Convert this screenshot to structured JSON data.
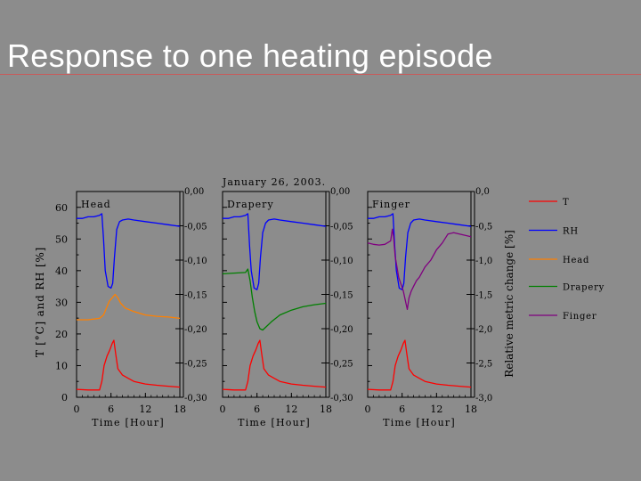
{
  "slide": {
    "title": "Response to one heating episode"
  },
  "colors": {
    "T": "#ff0000",
    "RH": "#0000ff",
    "Head": "#ff8000",
    "Drapery": "#008000",
    "Finger": "#800080",
    "background": "#8c8c8c"
  },
  "chart_data": {
    "type": "line",
    "title": "January 26, 2003.",
    "legend": {
      "position": "right",
      "entries": [
        "T",
        "RH",
        "Head",
        "Drapery",
        "Finger"
      ]
    },
    "left_axis": {
      "label": "T [°C] and RH [%]",
      "ticks": [
        "0",
        "10",
        "20",
        "30",
        "40",
        "50",
        "60"
      ],
      "ylim": [
        0,
        65
      ]
    },
    "right_axis": {
      "label": "Relative metric change [%]",
      "ticks_panel12": [
        "0,00",
        "-0,05",
        "-0,10",
        "-0,15",
        "-0,20",
        "-0,25",
        "-0,30"
      ],
      "ylim_panel12": [
        -0.3,
        0.0
      ],
      "ticks_panel3": [
        "0,0",
        "-0,5",
        "-1,0",
        "-1,5",
        "-2,0",
        "-2,5",
        "-3,0"
      ],
      "ylim_panel3": [
        -3.0,
        0.0
      ]
    },
    "x_axis": {
      "label": "Time [Hour]",
      "ticks": [
        "0",
        "6",
        "12",
        "18"
      ],
      "xlim": [
        0,
        18
      ]
    },
    "panels": [
      {
        "label": "Head",
        "series": [
          {
            "name": "RH",
            "axis": "left",
            "x": [
              0,
              1,
              2,
              3,
              4,
              4.4,
              4.7,
              5.0,
              5.5,
              6.0,
              6.3,
              6.6,
              7.0,
              7.5,
              8,
              9,
              10,
              12,
              14,
              16,
              18
            ],
            "y": [
              56.5,
              56.5,
              57,
              57,
              57.5,
              58,
              50,
              40,
              35,
              34.5,
              36,
              44,
              53,
              55.5,
              56,
              56.3,
              56,
              55.5,
              55,
              54.5,
              54
            ]
          },
          {
            "name": "Head",
            "axis": "right",
            "x": [
              0,
              2,
              4,
              4.7,
              5.2,
              5.7,
              6.2,
              6.7,
              7.2,
              7.7,
              8.5,
              10,
              12,
              14,
              16,
              18
            ],
            "y": [
              -0.187,
              -0.187,
              -0.185,
              -0.18,
              -0.17,
              -0.16,
              -0.155,
              -0.15,
              -0.155,
              -0.163,
              -0.17,
              -0.175,
              -0.18,
              -0.182,
              -0.183,
              -0.185
            ]
          },
          {
            "name": "T",
            "axis": "left",
            "x": [
              0,
              2,
              4,
              4.4,
              4.8,
              5.3,
              5.8,
              6.2,
              6.5,
              6.8,
              7.2,
              8,
              9,
              10,
              12,
              14,
              16,
              18
            ],
            "y": [
              2.5,
              2.3,
              2.3,
              5,
              10,
              13,
              15,
              17,
              18,
              14,
              9,
              7,
              6,
              5,
              4.2,
              3.8,
              3.5,
              3.2
            ]
          }
        ]
      },
      {
        "label": "Drapery",
        "series": [
          {
            "name": "RH",
            "axis": "left",
            "x": [
              0,
              1,
              2,
              3,
              4,
              4.4,
              4.7,
              5.0,
              5.5,
              6.0,
              6.3,
              6.6,
              7.0,
              7.5,
              8,
              9,
              10,
              12,
              14,
              16,
              18
            ],
            "y": [
              56.5,
              56.5,
              57,
              57,
              57.5,
              58,
              48,
              40,
              34.5,
              34,
              36,
              44,
              52,
              55,
              56,
              56.3,
              56,
              55.5,
              55,
              54.5,
              54
            ]
          },
          {
            "name": "Drapery",
            "axis": "right",
            "x": [
              0,
              2,
              4,
              4.4,
              4.8,
              5.2,
              5.6,
              6.0,
              6.5,
              7.0,
              7.5,
              8.5,
              10,
              12,
              14,
              16,
              18
            ],
            "y": [
              -0.12,
              -0.119,
              -0.118,
              -0.113,
              -0.13,
              -0.155,
              -0.175,
              -0.19,
              -0.2,
              -0.202,
              -0.198,
              -0.19,
              -0.18,
              -0.173,
              -0.168,
              -0.165,
              -0.163
            ]
          },
          {
            "name": "T",
            "axis": "left",
            "x": [
              0,
              2,
              4,
              4.4,
              4.8,
              5.3,
              5.8,
              6.2,
              6.5,
              6.8,
              7.2,
              8,
              9,
              10,
              12,
              14,
              16,
              18
            ],
            "y": [
              2.5,
              2.3,
              2.3,
              5,
              10,
              13,
              15,
              17,
              18,
              14,
              9,
              7,
              6,
              5,
              4.2,
              3.8,
              3.5,
              3.2
            ]
          }
        ]
      },
      {
        "label": "Finger",
        "series": [
          {
            "name": "RH",
            "axis": "left",
            "x": [
              0,
              1,
              2,
              3,
              4,
              4.4,
              4.7,
              5.0,
              5.5,
              6.0,
              6.3,
              6.6,
              7.0,
              7.5,
              8,
              9,
              10,
              12,
              14,
              16,
              18
            ],
            "y": [
              56.5,
              56.5,
              57,
              57,
              57.5,
              58,
              48,
              40,
              34.5,
              34,
              36,
              44,
              52,
              55,
              56,
              56.3,
              56,
              55.5,
              55,
              54.5,
              54
            ]
          },
          {
            "name": "Finger",
            "axis": "right",
            "x": [
              0,
              1,
              2,
              3,
              4,
              4.3,
              4.5,
              4.8,
              5.1,
              5.4,
              5.8,
              6.2,
              6.6,
              6.9,
              7.2,
              7.6,
              8.0,
              8.5,
              9,
              10,
              11,
              12,
              13,
              14,
              15,
              16,
              17,
              18
            ],
            "y": [
              -0.75,
              -0.77,
              -0.78,
              -0.77,
              -0.72,
              -0.55,
              -0.65,
              -0.95,
              -1.1,
              -1.25,
              -1.35,
              -1.45,
              -1.6,
              -1.72,
              -1.55,
              -1.45,
              -1.38,
              -1.3,
              -1.25,
              -1.1,
              -1.0,
              -0.85,
              -0.75,
              -0.62,
              -0.6,
              -0.62,
              -0.64,
              -0.66
            ]
          },
          {
            "name": "T",
            "axis": "left",
            "x": [
              0,
              2,
              4,
              4.4,
              4.8,
              5.3,
              5.8,
              6.2,
              6.5,
              6.8,
              7.2,
              8,
              9,
              10,
              12,
              14,
              16,
              18
            ],
            "y": [
              2.5,
              2.3,
              2.3,
              5,
              10,
              13,
              15,
              17,
              18,
              14,
              9,
              7,
              6,
              5,
              4.2,
              3.8,
              3.5,
              3.2
            ]
          }
        ]
      }
    ]
  }
}
